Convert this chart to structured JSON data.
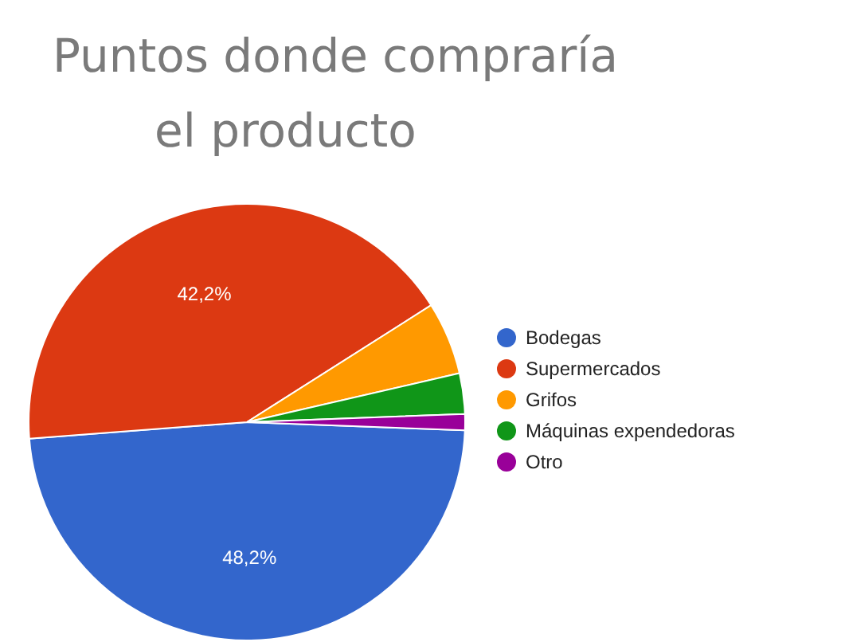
{
  "chart_data": {
    "type": "pie",
    "title": "Puntos donde compraría el producto",
    "categories": [
      "Bodegas",
      "Supermercados",
      "Grifos",
      "Máquinas expendedoras",
      "Otro"
    ],
    "values": [
      48.2,
      42.2,
      5.4,
      3.0,
      1.2
    ],
    "colors": [
      "#3366cc",
      "#dc3912",
      "#ff9900",
      "#109618",
      "#990099"
    ],
    "value_labels": [
      "48,2%",
      "42,2%",
      null,
      null,
      null
    ],
    "legend": "right"
  }
}
